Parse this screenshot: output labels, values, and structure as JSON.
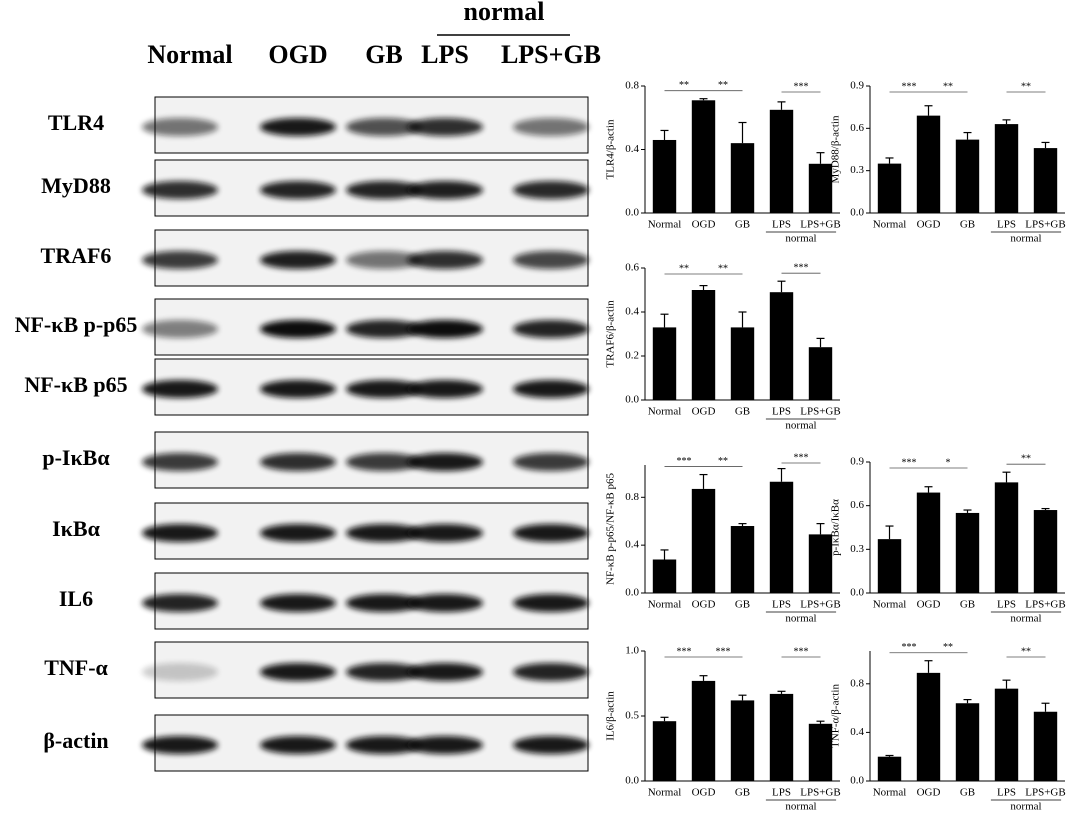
{
  "blot": {
    "lanes": [
      "Normal",
      "OGD",
      "GB",
      "LPS",
      "LPS+GB"
    ],
    "group_label": "normal",
    "rows": [
      "TLR4",
      "MyD88",
      "TRAF6",
      "NF-κB p-p65",
      "NF-κB p65",
      "p-IκBα",
      "IκBα",
      "IL6",
      "TNF-α",
      "β-actin"
    ]
  },
  "chart_data": [
    {
      "type": "bar",
      "y_label": "TLR4/β-actin",
      "categories": [
        "Normal",
        "OGD",
        "GB",
        "LPS",
        "LPS+GB"
      ],
      "group_label": "normal",
      "values": [
        0.46,
        0.71,
        0.44,
        0.65,
        0.31
      ],
      "errors": [
        0.06,
        0.01,
        0.13,
        0.05,
        0.07
      ],
      "color": "#000000",
      "ylim": [
        0,
        0.8
      ],
      "yticks": [
        {
          "value": 0,
          "label": "0.0"
        },
        0.4,
        0.8
      ],
      "significance": [
        {
          "pair": [
            "Normal",
            "OGD"
          ],
          "label": "**"
        },
        {
          "pair": [
            "OGD",
            "GB"
          ],
          "label": "**"
        },
        {
          "pair": [
            "LPS",
            "LPS+GB"
          ],
          "label": "***"
        }
      ]
    },
    {
      "type": "bar",
      "y_label": "MyD88/β-actin",
      "categories": [
        "Normal",
        "OGD",
        "GB",
        "LPS",
        "LPS+GB"
      ],
      "group_label": "normal",
      "values": [
        0.35,
        0.69,
        0.52,
        0.63,
        0.46
      ],
      "errors": [
        0.04,
        0.07,
        0.05,
        0.03,
        0.04
      ],
      "color": "#000000",
      "ylim": [
        0,
        0.9
      ],
      "yticks": [
        {
          "value": 0,
          "label": "0.0"
        },
        0.3,
        0.6,
        0.9
      ],
      "significance": [
        {
          "pair": [
            "Normal",
            "OGD"
          ],
          "label": "***"
        },
        {
          "pair": [
            "OGD",
            "GB"
          ],
          "label": "**"
        },
        {
          "pair": [
            "LPS",
            "LPS+GB"
          ],
          "label": "**"
        }
      ]
    },
    {
      "type": "bar",
      "y_label": "TRAF6/β-actin",
      "categories": [
        "Normal",
        "OGD",
        "GB",
        "LPS",
        "LPS+GB"
      ],
      "group_label": "normal",
      "values": [
        0.33,
        0.5,
        0.33,
        0.49,
        0.24
      ],
      "errors": [
        0.06,
        0.02,
        0.07,
        0.05,
        0.04
      ],
      "color": "#000000",
      "ylim": [
        0,
        0.6
      ],
      "yticks": [
        {
          "value": 0,
          "label": "0.0"
        },
        0.2,
        0.4,
        0.6
      ],
      "significance": [
        {
          "pair": [
            "Normal",
            "OGD"
          ],
          "label": "**"
        },
        {
          "pair": [
            "OGD",
            "GB"
          ],
          "label": "**"
        },
        {
          "pair": [
            "LPS",
            "LPS+GB"
          ],
          "label": "***"
        }
      ]
    },
    {
      "type": "bar",
      "y_label": "NF-κB p-p65/NF-κB p65",
      "categories": [
        "Normal",
        "OGD",
        "GB",
        "LPS",
        "LPS+GB"
      ],
      "group_label": "normal",
      "values": [
        0.28,
        0.87,
        0.56,
        0.93,
        0.49
      ],
      "errors": [
        0.08,
        0.12,
        0.02,
        0.11,
        0.09
      ],
      "color": "#000000",
      "ylim": [
        0,
        1.07
      ],
      "yticks": [
        {
          "value": 0,
          "label": "0.0"
        },
        0.4,
        0.8
      ],
      "significance": [
        {
          "pair": [
            "Normal",
            "OGD"
          ],
          "label": "***"
        },
        {
          "pair": [
            "OGD",
            "GB"
          ],
          "label": "**"
        },
        {
          "pair": [
            "LPS",
            "LPS+GB"
          ],
          "label": "***"
        }
      ]
    },
    {
      "type": "bar",
      "y_label": "p-IκBα/IκBα",
      "categories": [
        "Normal",
        "OGD",
        "GB",
        "LPS",
        "LPS+GB"
      ],
      "group_label": "normal",
      "values": [
        0.37,
        0.69,
        0.55,
        0.76,
        0.57
      ],
      "errors": [
        0.09,
        0.04,
        0.02,
        0.07,
        0.01
      ],
      "color": "#000000",
      "ylim": [
        0,
        0.9
      ],
      "yticks": [
        {
          "value": 0,
          "label": "0.0"
        },
        0.3,
        0.6,
        0.9
      ],
      "significance": [
        {
          "pair": [
            "Normal",
            "OGD"
          ],
          "label": "***"
        },
        {
          "pair": [
            "OGD",
            "GB"
          ],
          "label": "*"
        },
        {
          "pair": [
            "LPS",
            "LPS+GB"
          ],
          "label": "**"
        }
      ]
    },
    {
      "type": "bar",
      "y_label": "IL6/β-actin",
      "categories": [
        "Normal",
        "OGD",
        "GB",
        "LPS",
        "LPS+GB"
      ],
      "group_label": "normal",
      "values": [
        0.46,
        0.77,
        0.62,
        0.67,
        0.44
      ],
      "errors": [
        0.03,
        0.04,
        0.04,
        0.02,
        0.02
      ],
      "color": "#000000",
      "ylim": [
        0,
        1
      ],
      "yticks": [
        {
          "value": 0,
          "label": "0.0"
        },
        0.5,
        {
          "value": 1,
          "label": "1.0"
        }
      ],
      "significance": [
        {
          "pair": [
            "Normal",
            "OGD"
          ],
          "label": "***"
        },
        {
          "pair": [
            "OGD",
            "GB"
          ],
          "label": "***"
        },
        {
          "pair": [
            "LPS",
            "LPS+GB"
          ],
          "label": "***"
        }
      ]
    },
    {
      "type": "bar",
      "y_label": "TNF-α/β-actin",
      "categories": [
        "Normal",
        "OGD",
        "GB",
        "LPS",
        "LPS+GB"
      ],
      "group_label": "normal",
      "values": [
        0.2,
        0.89,
        0.64,
        0.76,
        0.57
      ],
      "errors": [
        0.01,
        0.1,
        0.03,
        0.07,
        0.07
      ],
      "color": "#000000",
      "ylim": [
        0,
        1.07
      ],
      "yticks": [
        {
          "value": 0,
          "label": "0.0"
        },
        0.4,
        0.8
      ],
      "significance": [
        {
          "pair": [
            "Normal",
            "OGD"
          ],
          "label": "***"
        },
        {
          "pair": [
            "OGD",
            "GB"
          ],
          "label": "**"
        },
        {
          "pair": [
            "LPS",
            "LPS+GB"
          ],
          "label": "**"
        }
      ]
    }
  ]
}
